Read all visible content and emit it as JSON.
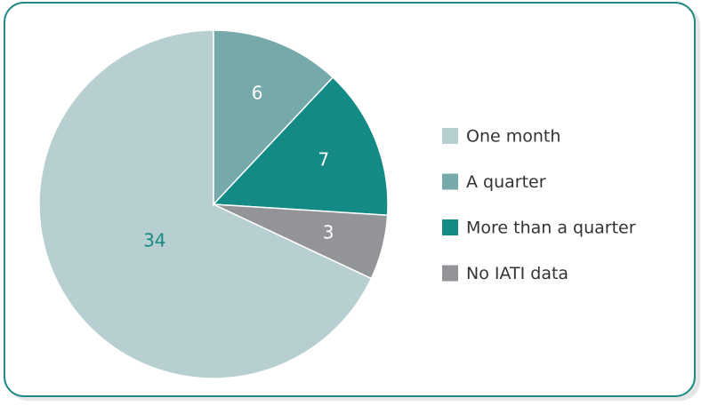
{
  "chart_data": {
    "type": "pie",
    "categories": [
      "One month",
      "A quarter",
      "More than a quarter",
      "No IATI data"
    ],
    "values": [
      34,
      6,
      7,
      3
    ],
    "colors": [
      "#b7cfd1",
      "#76a9a9",
      "#138a85",
      "#929497"
    ],
    "label_colors": [
      "#1a8a85",
      "#ffffff",
      "#ffffff",
      "#ffffff"
    ],
    "legend": "right"
  }
}
